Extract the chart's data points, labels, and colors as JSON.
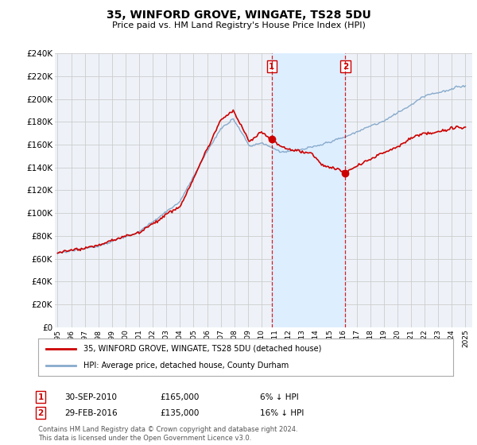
{
  "title": "35, WINFORD GROVE, WINGATE, TS28 5DU",
  "subtitle": "Price paid vs. HM Land Registry's House Price Index (HPI)",
  "ylabel_ticks": [
    "£0",
    "£20K",
    "£40K",
    "£60K",
    "£80K",
    "£100K",
    "£120K",
    "£140K",
    "£160K",
    "£180K",
    "£200K",
    "£220K",
    "£240K"
  ],
  "ylim": [
    0,
    240000
  ],
  "ytick_vals": [
    0,
    20000,
    40000,
    60000,
    80000,
    100000,
    120000,
    140000,
    160000,
    180000,
    200000,
    220000,
    240000
  ],
  "x_start_year": 1995,
  "x_end_year": 2025,
  "line1_color": "#cc0000",
  "line2_color": "#88aacc",
  "shade_color": "#ddeeff",
  "marker_color": "#cc0000",
  "sale1_x": 2010.75,
  "sale1_price": 165000,
  "sale2_x": 2016.17,
  "sale2_price": 135000,
  "sale1_date": "30-SEP-2010",
  "sale2_date": "29-FEB-2016",
  "sale1_hpi_diff": "6% ↓ HPI",
  "sale2_hpi_diff": "16% ↓ HPI",
  "legend1_label": "35, WINFORD GROVE, WINGATE, TS28 5DU (detached house)",
  "legend2_label": "HPI: Average price, detached house, County Durham",
  "footnote": "Contains HM Land Registry data © Crown copyright and database right 2024.\nThis data is licensed under the Open Government Licence v3.0.",
  "background_color": "#ffffff",
  "plot_bg_color": "#eef2f8",
  "grid_color": "#cccccc"
}
